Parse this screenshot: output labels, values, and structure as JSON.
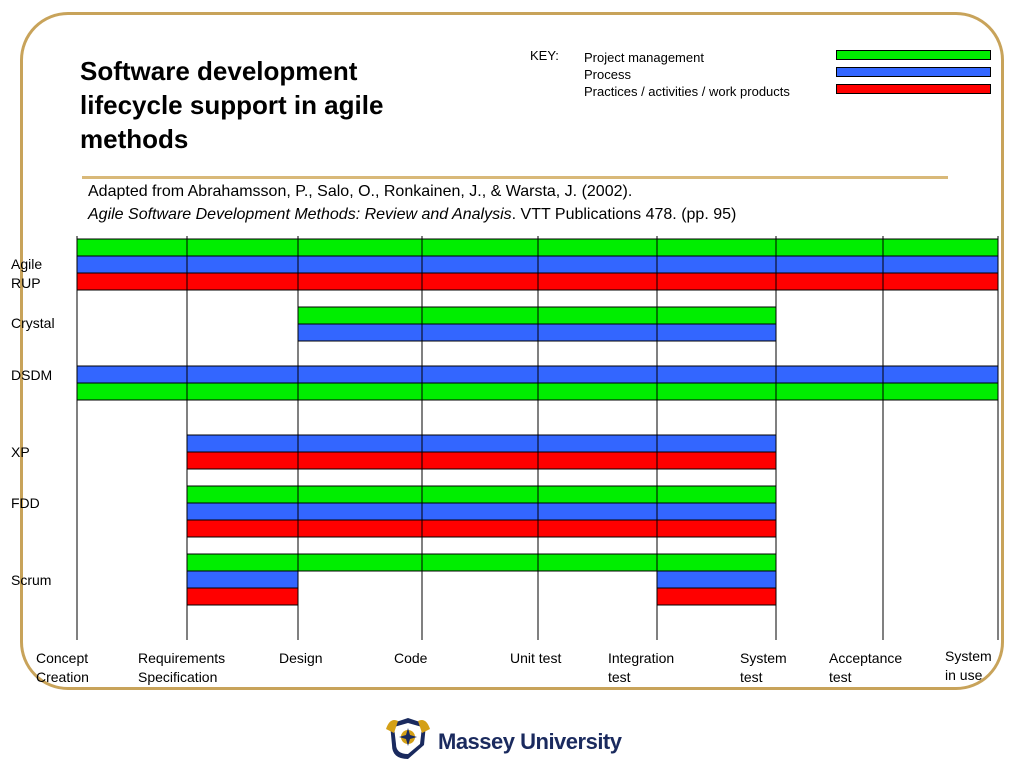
{
  "title": "Software development\nlifecycle support in agile\nmethods",
  "key": {
    "label": "KEY:",
    "items": [
      {
        "label": "Project management",
        "color": "#00ee00"
      },
      {
        "label": "Process",
        "color": "#3366ff"
      },
      {
        "label": "Practices / activities / work products",
        "color": "#ff0000"
      }
    ]
  },
  "citation": {
    "line1": "Adapted from Abrahamsson, P., Salo, O., Ronkainen, J., & Warsta, J. (2002).",
    "line2_italic": "Agile Software Development Methods: Review and Analysis",
    "line2_rest": ". VTT Publications 478. (pp. 95)"
  },
  "phases": [
    [
      "Concept",
      "Creation"
    ],
    [
      "Requirements",
      "Specification"
    ],
    [
      "Design"
    ],
    [
      "Code"
    ],
    [
      "Unit test"
    ],
    [
      "Integration",
      "test"
    ],
    [
      "System",
      "test"
    ],
    [
      "Acceptance",
      "test"
    ],
    [
      "System",
      "in use"
    ]
  ],
  "methods": [
    {
      "name": "Agile",
      "name2": "RUP",
      "rows": [
        {
          "category": "Project management",
          "from": 0,
          "to": 8
        },
        {
          "category": "Process",
          "from": 0,
          "to": 8
        },
        {
          "category": "Practices / activities / work products",
          "from": 0,
          "to": 8
        }
      ]
    },
    {
      "name": "Crystal",
      "rows": [
        {
          "category": "Project management",
          "from": 2,
          "to": 6
        },
        {
          "category": "Process",
          "from": 2,
          "to": 6
        }
      ]
    },
    {
      "name": "DSDM",
      "rows": [
        {
          "category": "Process",
          "from": 0,
          "to": 8
        },
        {
          "category": "Project management",
          "from": 0,
          "to": 8
        }
      ]
    },
    {
      "name": "XP",
      "rows": [
        {
          "category": "Process",
          "from": 1,
          "to": 6
        },
        {
          "category": "Practices / activities / work products",
          "from": 1,
          "to": 6
        }
      ]
    },
    {
      "name": "FDD",
      "rows": [
        {
          "category": "Project management",
          "from": 1,
          "to": 6
        },
        {
          "category": "Process",
          "from": 1,
          "to": 6
        },
        {
          "category": "Practices / activities / work products",
          "from": 1,
          "to": 6
        }
      ]
    },
    {
      "name": "Scrum",
      "rows": [
        {
          "category": "Project management",
          "from": 1,
          "to": 6
        },
        {
          "category": "Process",
          "from": 1,
          "to": 2
        },
        {
          "category": "Process",
          "from": 5,
          "to": 6
        },
        {
          "category": "Practices / activities / work products",
          "from": 1,
          "to": 2
        },
        {
          "category": "Practices / activities / work products",
          "from": 5,
          "to": 6
        }
      ]
    }
  ],
  "logo": {
    "text": "Massey University",
    "colors": [
      "#1a2a5e",
      "#d4a017"
    ]
  }
}
